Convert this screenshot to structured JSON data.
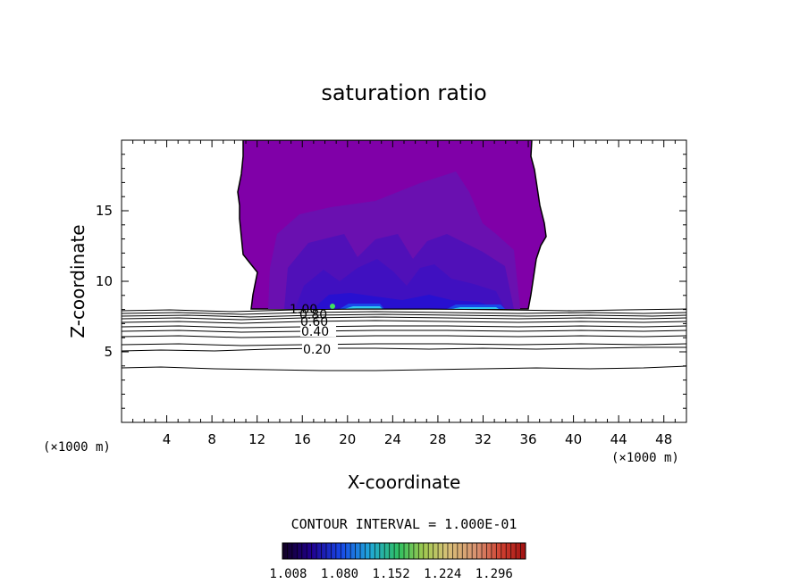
{
  "chart_data": {
    "type": "contour",
    "title": "saturation ratio",
    "xlabel": "X-coordinate",
    "ylabel": "Z-coordinate",
    "x_unit_left": "(×1000 m)",
    "x_unit_right": "(×1000 m)",
    "xlim": [
      0,
      50
    ],
    "ylim": [
      0,
      20
    ],
    "x_ticks": [
      4,
      8,
      12,
      16,
      20,
      24,
      28,
      32,
      36,
      40,
      44,
      48
    ],
    "y_ticks": [
      5,
      10,
      15
    ],
    "contour_levels": [
      0.1,
      0.2,
      0.3,
      0.4,
      0.5,
      0.6,
      0.7,
      0.8,
      0.9,
      1.0
    ],
    "contour_level_labels": [
      "0.20",
      "0.40",
      "0.60",
      "0.80",
      "1.00"
    ],
    "contour_interval_text": "CONTOUR INTERVAL = 1.000E-01",
    "colorbar": {
      "range": [
        1.0,
        1.34
      ],
      "tick_labels": [
        "1.008",
        "1.080",
        "1.152",
        "1.224",
        "1.296"
      ],
      "tick_values": [
        1.008,
        1.08,
        1.152,
        1.224,
        1.296
      ]
    },
    "shaded_region": {
      "x_range": [
        11.5,
        36.5
      ],
      "z_range": [
        8.2,
        20
      ],
      "value_range": [
        1.0,
        1.1
      ]
    }
  }
}
